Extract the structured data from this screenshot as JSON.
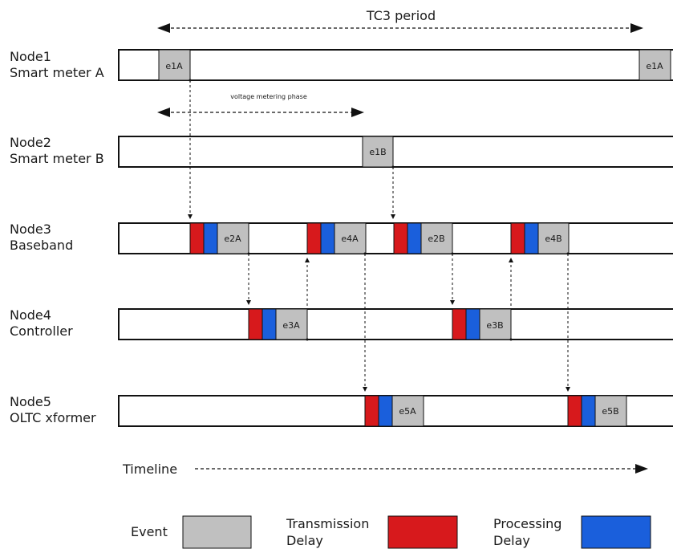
{
  "title": "TC3 period",
  "phase_label": "voltage metering phase",
  "timeline_label": "Timeline",
  "nodes": [
    {
      "line1": "Node1",
      "line2": "Smart meter A"
    },
    {
      "line1": "Node2",
      "line2": "Smart meter B"
    },
    {
      "line1": "Node3",
      "line2": "Baseband"
    },
    {
      "line1": "Node4",
      "line2": "Controller"
    },
    {
      "line1": "Node5",
      "line2": "OLTC xformer"
    }
  ],
  "events": [
    {
      "node": 0,
      "label": "e1A",
      "delays": false
    },
    {
      "node": 0,
      "label": "e1A",
      "delays": false
    },
    {
      "node": 1,
      "label": "e1B",
      "delays": false
    },
    {
      "node": 2,
      "label": "e2A",
      "delays": true
    },
    {
      "node": 2,
      "label": "e4A",
      "delays": true
    },
    {
      "node": 2,
      "label": "e2B",
      "delays": true
    },
    {
      "node": 2,
      "label": "e4B",
      "delays": true
    },
    {
      "node": 3,
      "label": "e3A",
      "delays": true
    },
    {
      "node": 3,
      "label": "e3B",
      "delays": true
    },
    {
      "node": 4,
      "label": "e5A",
      "delays": true
    },
    {
      "node": 4,
      "label": "e5B",
      "delays": true
    }
  ],
  "legend": {
    "event": "Event",
    "transmission_line1": "Transmission",
    "transmission_line2": "Delay",
    "processing_line1": "Processing",
    "processing_line2": "Delay"
  },
  "colors": {
    "event": "#c0c0c0",
    "transmission": "#d7191c",
    "processing": "#1a5fdc",
    "line": "#111111"
  }
}
